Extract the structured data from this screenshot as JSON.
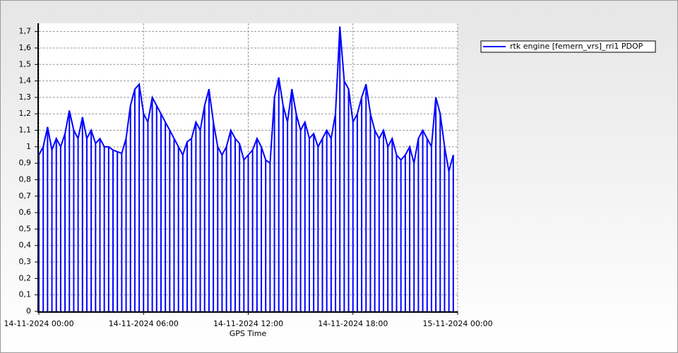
{
  "chart_data": {
    "type": "line",
    "drop_lines": true,
    "x_label": "GPS Time",
    "x": [
      "14-11-2024 00:00",
      "14-11-2024 00:15",
      "14-11-2024 00:30",
      "14-11-2024 00:45",
      "14-11-2024 01:00",
      "14-11-2024 01:15",
      "14-11-2024 01:30",
      "14-11-2024 01:45",
      "14-11-2024 02:00",
      "14-11-2024 02:15",
      "14-11-2024 02:30",
      "14-11-2024 02:45",
      "14-11-2024 03:00",
      "14-11-2024 03:15",
      "14-11-2024 03:30",
      "14-11-2024 03:45",
      "14-11-2024 04:00",
      "14-11-2024 04:15",
      "14-11-2024 04:30",
      "14-11-2024 04:45",
      "14-11-2024 05:00",
      "14-11-2024 05:15",
      "14-11-2024 05:30",
      "14-11-2024 05:45",
      "14-11-2024 06:00",
      "14-11-2024 06:15",
      "14-11-2024 06:30",
      "14-11-2024 06:45",
      "14-11-2024 07:00",
      "14-11-2024 07:15",
      "14-11-2024 07:30",
      "14-11-2024 07:45",
      "14-11-2024 08:00",
      "14-11-2024 08:15",
      "14-11-2024 08:30",
      "14-11-2024 08:45",
      "14-11-2024 09:00",
      "14-11-2024 09:15",
      "14-11-2024 09:30",
      "14-11-2024 09:45",
      "14-11-2024 10:00",
      "14-11-2024 10:15",
      "14-11-2024 10:30",
      "14-11-2024 10:45",
      "14-11-2024 11:00",
      "14-11-2024 11:15",
      "14-11-2024 11:30",
      "14-11-2024 11:45",
      "14-11-2024 12:00",
      "14-11-2024 12:15",
      "14-11-2024 12:30",
      "14-11-2024 12:45",
      "14-11-2024 13:00",
      "14-11-2024 13:15",
      "14-11-2024 13:30",
      "14-11-2024 13:45",
      "14-11-2024 14:00",
      "14-11-2024 14:15",
      "14-11-2024 14:30",
      "14-11-2024 14:45",
      "14-11-2024 15:00",
      "14-11-2024 15:15",
      "14-11-2024 15:30",
      "14-11-2024 15:45",
      "14-11-2024 16:00",
      "14-11-2024 16:15",
      "14-11-2024 16:30",
      "14-11-2024 16:45",
      "14-11-2024 17:00",
      "14-11-2024 17:15",
      "14-11-2024 17:30",
      "14-11-2024 17:45",
      "14-11-2024 18:00",
      "14-11-2024 18:15",
      "14-11-2024 18:30",
      "14-11-2024 18:45",
      "14-11-2024 19:00",
      "14-11-2024 19:15",
      "14-11-2024 19:30",
      "14-11-2024 19:45",
      "14-11-2024 20:00",
      "14-11-2024 20:15",
      "14-11-2024 20:30",
      "14-11-2024 20:45",
      "14-11-2024 21:00",
      "14-11-2024 21:15",
      "14-11-2024 21:30",
      "14-11-2024 21:45",
      "14-11-2024 22:00",
      "14-11-2024 22:15",
      "14-11-2024 22:30",
      "14-11-2024 22:45",
      "14-11-2024 23:00",
      "14-11-2024 23:15",
      "14-11-2024 23:30",
      "14-11-2024 23:45"
    ],
    "series": [
      {
        "name": "rtk engine [femern_vrs]_rri1 PDOP",
        "color": "#0000ff",
        "values": [
          0.95,
          1.0,
          1.12,
          0.98,
          1.05,
          1.0,
          1.08,
          1.22,
          1.1,
          1.05,
          1.18,
          1.05,
          1.1,
          1.02,
          1.05,
          1.0,
          1.0,
          0.98,
          0.97,
          0.96,
          1.05,
          1.25,
          1.35,
          1.38,
          1.2,
          1.15,
          1.3,
          1.25,
          1.2,
          1.15,
          1.1,
          1.05,
          1.0,
          0.95,
          1.03,
          1.05,
          1.15,
          1.1,
          1.25,
          1.35,
          1.15,
          1.0,
          0.95,
          1.0,
          1.1,
          1.05,
          1.02,
          0.92,
          0.95,
          0.98,
          1.05,
          1.0,
          0.92,
          0.9,
          1.3,
          1.42,
          1.25,
          1.15,
          1.35,
          1.2,
          1.1,
          1.15,
          1.05,
          1.08,
          1.0,
          1.05,
          1.1,
          1.05,
          1.2,
          1.73,
          1.4,
          1.35,
          1.15,
          1.2,
          1.3,
          1.38,
          1.2,
          1.1,
          1.05,
          1.1,
          1.0,
          1.05,
          0.95,
          0.92,
          0.95,
          1.0,
          0.9,
          1.05,
          1.1,
          1.05,
          1.0,
          1.3,
          1.2,
          1.0,
          0.85,
          0.95
        ]
      }
    ],
    "xlim": [
      "14-11-2024 00:00",
      "15-11-2024 00:00"
    ],
    "xticks": [
      "14-11-2024 00:00",
      "14-11-2024 06:00",
      "14-11-2024 12:00",
      "14-11-2024 18:00",
      "15-11-2024 00:00"
    ],
    "ylim": [
      0,
      1.75
    ],
    "yticks": [
      0,
      {
        "value": 0.1,
        "label": "0,1"
      },
      {
        "value": 0.2,
        "label": "0,2"
      },
      {
        "value": 0.3,
        "label": "0,3"
      },
      {
        "value": 0.4,
        "label": "0,4"
      },
      {
        "value": 0.5,
        "label": "0,5"
      },
      {
        "value": 0.6,
        "label": "0,6"
      },
      {
        "value": 0.7,
        "label": "0,7"
      },
      {
        "value": 0.8,
        "label": "0,8"
      },
      {
        "value": 0.9,
        "label": "0,9"
      },
      1,
      {
        "value": 1.1,
        "label": "1,1"
      },
      {
        "value": 1.2,
        "label": "1,2"
      },
      {
        "value": 1.3,
        "label": "1,3"
      },
      {
        "value": 1.4,
        "label": "1,4"
      },
      {
        "value": 1.5,
        "label": "1,5"
      },
      {
        "value": 1.6,
        "label": "1,6"
      },
      {
        "value": 1.7,
        "label": "1,7"
      }
    ],
    "grid": true,
    "legend": "top-right-outside"
  }
}
